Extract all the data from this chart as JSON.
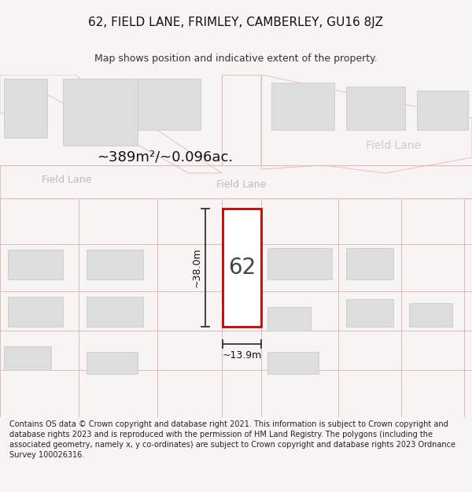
{
  "title": "62, FIELD LANE, FRIMLEY, CAMBERLEY, GU16 8JZ",
  "subtitle": "Map shows position and indicative extent of the property.",
  "footer": "Contains OS data © Crown copyright and database right 2021. This information is subject to Crown copyright and database rights 2023 and is reproduced with the permission of HM Land Registry. The polygons (including the associated geometry, namely x, y co-ordinates) are subject to Crown copyright and database rights 2023 Ordnance Survey 100026316.",
  "bg_color": "#f7f4f4",
  "map_bg": "#f7f4f4",
  "road_line": "#e8b8b8",
  "road_fill": "#f7f4f4",
  "building_fill": "#dddddd",
  "building_edge": "#cccccc",
  "plot_line": "#e8b8b8",
  "highlight_fill": "#ffffff",
  "highlight_edge": "#cc0000",
  "dim_color": "#333333",
  "area_text": "~389m²/~0.096ac.",
  "width_text": "~13.9m",
  "height_text": "~38.0m",
  "label_62": "62",
  "road_label_color": "#bbbbbb",
  "title_fontsize": 11,
  "subtitle_fontsize": 9,
  "footer_fontsize": 7
}
